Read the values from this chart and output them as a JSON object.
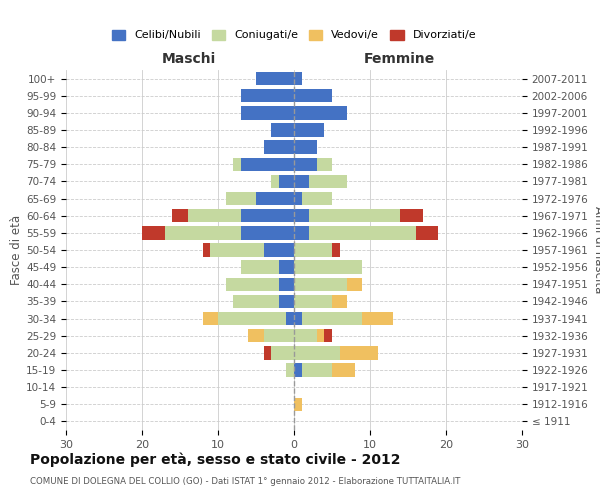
{
  "age_groups": [
    "0-4",
    "5-9",
    "10-14",
    "15-19",
    "20-24",
    "25-29",
    "30-34",
    "35-39",
    "40-44",
    "45-49",
    "50-54",
    "55-59",
    "60-64",
    "65-69",
    "70-74",
    "75-79",
    "80-84",
    "85-89",
    "90-94",
    "95-99",
    "100+"
  ],
  "birth_years": [
    "2007-2011",
    "2002-2006",
    "1997-2001",
    "1992-1996",
    "1987-1991",
    "1982-1986",
    "1977-1981",
    "1972-1976",
    "1967-1971",
    "1962-1966",
    "1957-1961",
    "1952-1956",
    "1947-1951",
    "1942-1946",
    "1937-1941",
    "1932-1936",
    "1927-1931",
    "1922-1926",
    "1917-1921",
    "1912-1916",
    "≤ 1911"
  ],
  "male": {
    "celibi": [
      5,
      7,
      7,
      3,
      4,
      7,
      2,
      5,
      7,
      7,
      4,
      2,
      2,
      2,
      1,
      0,
      0,
      0,
      0,
      0,
      0
    ],
    "coniugati": [
      0,
      0,
      0,
      0,
      0,
      1,
      1,
      4,
      7,
      10,
      7,
      5,
      7,
      6,
      9,
      4,
      3,
      1,
      0,
      0,
      0
    ],
    "vedovi": [
      0,
      0,
      0,
      0,
      0,
      0,
      0,
      0,
      0,
      0,
      0,
      0,
      0,
      0,
      2,
      2,
      0,
      0,
      0,
      0,
      0
    ],
    "divorziati": [
      0,
      0,
      0,
      0,
      0,
      0,
      0,
      0,
      2,
      3,
      1,
      0,
      0,
      0,
      0,
      0,
      1,
      0,
      0,
      0,
      0
    ]
  },
  "female": {
    "nubili": [
      1,
      5,
      7,
      4,
      3,
      3,
      2,
      1,
      2,
      2,
      0,
      0,
      0,
      0,
      1,
      0,
      0,
      1,
      0,
      0,
      0
    ],
    "coniugate": [
      0,
      0,
      0,
      0,
      0,
      2,
      5,
      4,
      12,
      14,
      5,
      9,
      7,
      5,
      8,
      3,
      6,
      4,
      0,
      0,
      0
    ],
    "vedove": [
      0,
      0,
      0,
      0,
      0,
      0,
      0,
      0,
      0,
      0,
      0,
      0,
      2,
      2,
      4,
      1,
      5,
      3,
      0,
      1,
      0
    ],
    "divorziate": [
      0,
      0,
      0,
      0,
      0,
      0,
      0,
      0,
      3,
      3,
      1,
      0,
      0,
      0,
      0,
      1,
      0,
      0,
      0,
      0,
      0
    ]
  },
  "colors": {
    "celibi": "#4472c4",
    "coniugati": "#c5d9a0",
    "vedovi": "#f0c060",
    "divorziati": "#c0392b"
  },
  "title": "Popolazione per età, sesso e stato civile - 2012",
  "subtitle": "COMUNE DI DOLEGNA DEL COLLIO (GO) - Dati ISTAT 1° gennaio 2012 - Elaborazione TUTTAITALIA.IT",
  "ylabel": "Fasce di età",
  "ylabel_right": "Anni di nascita",
  "xlabel_left": "Maschi",
  "xlabel_right": "Femmine",
  "xlim": 30,
  "background_color": "#ffffff",
  "grid_color": "#cccccc"
}
